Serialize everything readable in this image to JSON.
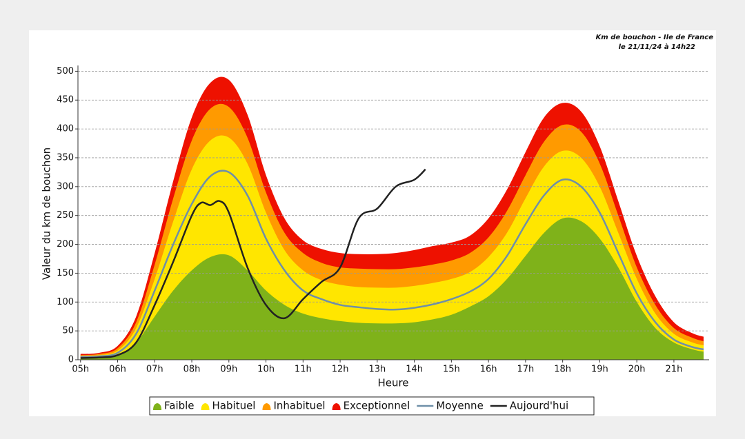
{
  "chart_data": {
    "type": "area",
    "annotations": [
      "Km de bouchon - Ile de France",
      "le 21/11/24 à 14h22"
    ],
    "ylabel": "Valeur du  km de bouchon",
    "xlabel": "Heure",
    "x": [
      5,
      5.5,
      6,
      6.5,
      7,
      7.5,
      8,
      8.5,
      9,
      9.5,
      10,
      10.5,
      11,
      11.5,
      12,
      12.5,
      13,
      13.5,
      14,
      14.5,
      15,
      15.5,
      16,
      16.5,
      17,
      17.5,
      18,
      18.5,
      19,
      19.5,
      20,
      20.5,
      21,
      21.5,
      21.8
    ],
    "xlim": [
      4.93,
      21.95
    ],
    "xticks": [
      {
        "value": 5,
        "label": "05h"
      },
      {
        "value": 6,
        "label": "06h"
      },
      {
        "value": 7,
        "label": "07h"
      },
      {
        "value": 8,
        "label": "08h"
      },
      {
        "value": 9,
        "label": "09h"
      },
      {
        "value": 10,
        "label": "10h"
      },
      {
        "value": 11,
        "label": "11h"
      },
      {
        "value": 12,
        "label": "12h"
      },
      {
        "value": 13,
        "label": "13h"
      },
      {
        "value": 14,
        "label": "14h"
      },
      {
        "value": 15,
        "label": "15h"
      },
      {
        "value": 16,
        "label": "16h"
      },
      {
        "value": 17,
        "label": "17h"
      },
      {
        "value": 18,
        "label": "18h"
      },
      {
        "value": 19,
        "label": "19h"
      },
      {
        "value": 20,
        "label": "20h"
      },
      {
        "value": 21,
        "label": "21h"
      }
    ],
    "ylim": [
      0,
      510
    ],
    "yticks": [
      0,
      50,
      100,
      150,
      200,
      250,
      300,
      350,
      400,
      450,
      500
    ],
    "grid": true,
    "series": [
      {
        "name": "Faible",
        "type": "area",
        "color": "#7fb21a",
        "values": [
          3,
          4,
          8,
          30,
          75,
          120,
          155,
          178,
          181,
          155,
          120,
          95,
          80,
          72,
          67,
          64,
          63,
          63,
          65,
          70,
          78,
          92,
          110,
          140,
          180,
          220,
          245,
          240,
          210,
          160,
          100,
          55,
          30,
          18,
          14
        ]
      },
      {
        "name": "Habituel",
        "type": "area",
        "color": "#ffe600",
        "values": [
          6,
          8,
          16,
          55,
          140,
          240,
          330,
          380,
          385,
          340,
          255,
          190,
          155,
          138,
          130,
          126,
          125,
          125,
          128,
          133,
          140,
          152,
          178,
          220,
          280,
          335,
          362,
          350,
          300,
          220,
          140,
          80,
          45,
          30,
          25
        ]
      },
      {
        "name": "Inhabituel",
        "type": "area",
        "color": "#ff9a00",
        "values": [
          8,
          10,
          20,
          65,
          165,
          280,
          380,
          435,
          438,
          385,
          290,
          220,
          185,
          168,
          160,
          158,
          157,
          157,
          160,
          165,
          172,
          185,
          212,
          258,
          320,
          378,
          407,
          395,
          340,
          250,
          160,
          95,
          55,
          38,
          32
        ]
      },
      {
        "name": "Exceptionnel",
        "type": "area",
        "color": "#ee1100",
        "values": [
          10,
          12,
          24,
          75,
          185,
          310,
          420,
          480,
          485,
          425,
          320,
          245,
          207,
          192,
          185,
          183,
          183,
          185,
          190,
          197,
          203,
          215,
          245,
          295,
          360,
          420,
          445,
          430,
          370,
          275,
          180,
          110,
          65,
          46,
          40
        ]
      },
      {
        "name": "Moyenne",
        "type": "line",
        "color": "#6f8fa8",
        "values": [
          5,
          6,
          12,
          45,
          120,
          200,
          270,
          318,
          325,
          285,
          210,
          155,
          120,
          105,
          95,
          91,
          88,
          87,
          90,
          96,
          105,
          118,
          140,
          180,
          235,
          285,
          312,
          300,
          255,
          185,
          115,
          65,
          35,
          22,
          18
        ]
      },
      {
        "name": "Aujourd'hui",
        "type": "line",
        "color": "#222222",
        "x": [
          5,
          5.5,
          6,
          6.5,
          7,
          7.5,
          8,
          8.25,
          8.5,
          8.75,
          9,
          9.5,
          10,
          10.5,
          11,
          11.5,
          12,
          12.5,
          13,
          13.5,
          14,
          14.3
        ],
        "values": [
          3,
          4,
          8,
          30,
          95,
          170,
          250,
          272,
          268,
          275,
          255,
          160,
          95,
          72,
          105,
          135,
          160,
          245,
          262,
          300,
          312,
          330
        ]
      }
    ]
  }
}
